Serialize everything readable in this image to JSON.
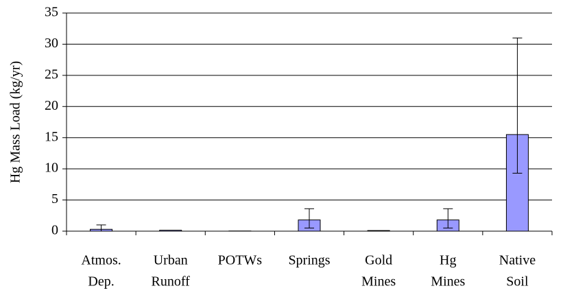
{
  "chart_data": {
    "type": "bar",
    "y_label": "Hg Mass Load (kg/yr)",
    "categories": [
      [
        "Atmos.",
        "Dep."
      ],
      [
        "Urban",
        "Runoff"
      ],
      [
        "POTWs"
      ],
      [
        "Springs"
      ],
      [
        "Gold",
        "Mines"
      ],
      [
        "Hg",
        "Mines"
      ],
      [
        "Native",
        "Soil"
      ]
    ],
    "values": [
      0.3,
      0.15,
      0.03,
      1.8,
      0.1,
      1.8,
      15.5
    ],
    "error_plus": [
      0.7,
      0,
      0,
      1.8,
      0,
      1.8,
      15.5
    ],
    "error_minus": [
      0.3,
      0,
      0,
      1.3,
      0,
      1.3,
      6.2
    ],
    "color": "#9999ff",
    "ylim": [
      0,
      35
    ],
    "yticks": [
      0,
      5,
      10,
      15,
      20,
      25,
      30,
      35
    ],
    "grid": true
  }
}
